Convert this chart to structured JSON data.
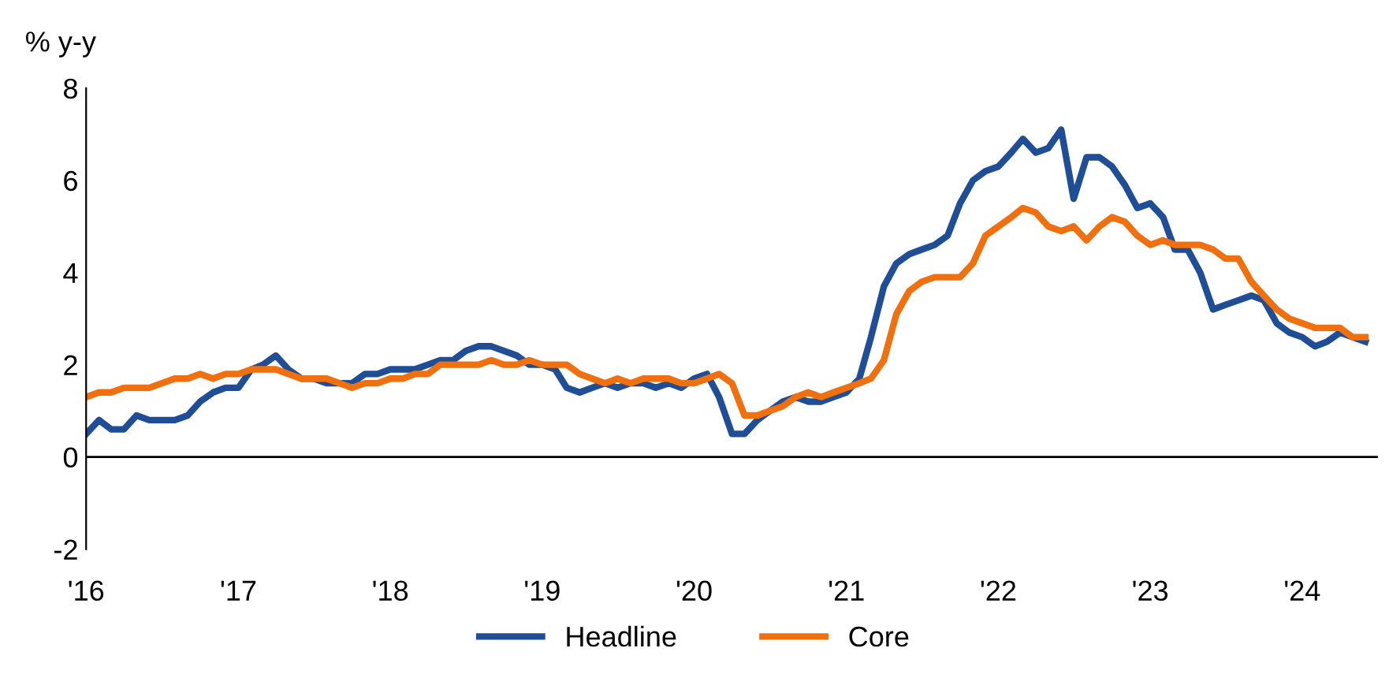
{
  "chart_data": {
    "type": "line",
    "ylabel": "% y-y",
    "x": [
      "2016-01",
      "2016-02",
      "2016-03",
      "2016-04",
      "2016-05",
      "2016-06",
      "2016-07",
      "2016-08",
      "2016-09",
      "2016-10",
      "2016-11",
      "2016-12",
      "2017-01",
      "2017-02",
      "2017-03",
      "2017-04",
      "2017-05",
      "2017-06",
      "2017-07",
      "2017-08",
      "2017-09",
      "2017-10",
      "2017-11",
      "2017-12",
      "2018-01",
      "2018-02",
      "2018-03",
      "2018-04",
      "2018-05",
      "2018-06",
      "2018-07",
      "2018-08",
      "2018-09",
      "2018-10",
      "2018-11",
      "2018-12",
      "2019-01",
      "2019-02",
      "2019-03",
      "2019-04",
      "2019-05",
      "2019-06",
      "2019-07",
      "2019-08",
      "2019-09",
      "2019-10",
      "2019-11",
      "2019-12",
      "2020-01",
      "2020-02",
      "2020-03",
      "2020-04",
      "2020-05",
      "2020-06",
      "2020-07",
      "2020-08",
      "2020-09",
      "2020-10",
      "2020-11",
      "2020-12",
      "2021-01",
      "2021-02",
      "2021-03",
      "2021-04",
      "2021-05",
      "2021-06",
      "2021-07",
      "2021-08",
      "2021-09",
      "2021-10",
      "2021-11",
      "2021-12",
      "2022-01",
      "2022-02",
      "2022-03",
      "2022-04",
      "2022-05",
      "2022-06",
      "2022-07",
      "2022-08",
      "2022-09",
      "2022-10",
      "2022-11",
      "2022-12",
      "2023-01",
      "2023-02",
      "2023-03",
      "2023-04",
      "2023-05",
      "2023-06",
      "2023-07",
      "2023-08",
      "2023-09",
      "2023-10",
      "2023-11",
      "2023-12",
      "2024-01",
      "2024-02",
      "2024-03",
      "2024-04",
      "2024-05",
      "2024-06"
    ],
    "series": [
      {
        "name": "Headline",
        "color": "#1f4e96",
        "values": [
          0.5,
          0.8,
          0.6,
          0.6,
          0.9,
          0.8,
          0.8,
          0.8,
          0.9,
          1.2,
          1.4,
          1.5,
          1.5,
          1.9,
          2.0,
          2.2,
          1.9,
          1.7,
          1.7,
          1.6,
          1.6,
          1.6,
          1.8,
          1.8,
          1.9,
          1.9,
          1.9,
          2.0,
          2.1,
          2.1,
          2.3,
          2.4,
          2.4,
          2.3,
          2.2,
          2.0,
          2.0,
          1.9,
          1.5,
          1.4,
          1.5,
          1.6,
          1.5,
          1.6,
          1.6,
          1.5,
          1.6,
          1.5,
          1.7,
          1.8,
          1.3,
          0.5,
          0.5,
          0.8,
          1.0,
          1.2,
          1.3,
          1.2,
          1.2,
          1.3,
          1.4,
          1.7,
          2.6,
          3.7,
          4.2,
          4.4,
          4.5,
          4.6,
          4.8,
          5.5,
          6.0,
          6.2,
          6.3,
          6.6,
          6.9,
          6.6,
          6.7,
          7.1,
          5.6,
          6.5,
          6.5,
          6.3,
          5.9,
          5.4,
          5.5,
          5.2,
          4.5,
          4.5,
          4.0,
          3.2,
          3.3,
          3.4,
          3.5,
          3.4,
          2.9,
          2.7,
          2.6,
          2.4,
          2.5,
          2.7,
          2.6,
          2.5
        ]
      },
      {
        "name": "Core",
        "color": "#f07010",
        "values": [
          1.3,
          1.4,
          1.4,
          1.5,
          1.5,
          1.5,
          1.6,
          1.7,
          1.7,
          1.8,
          1.7,
          1.8,
          1.8,
          1.9,
          1.9,
          1.9,
          1.8,
          1.7,
          1.7,
          1.7,
          1.6,
          1.5,
          1.6,
          1.6,
          1.7,
          1.7,
          1.8,
          1.8,
          2.0,
          2.0,
          2.0,
          2.0,
          2.1,
          2.0,
          2.0,
          2.1,
          2.0,
          2.0,
          2.0,
          1.8,
          1.7,
          1.6,
          1.7,
          1.6,
          1.7,
          1.7,
          1.7,
          1.6,
          1.6,
          1.7,
          1.8,
          1.6,
          0.9,
          0.9,
          1.0,
          1.1,
          1.3,
          1.4,
          1.3,
          1.4,
          1.5,
          1.6,
          1.7,
          2.1,
          3.1,
          3.6,
          3.8,
          3.9,
          3.9,
          3.9,
          4.2,
          4.8,
          5.0,
          5.2,
          5.4,
          5.3,
          5.0,
          4.9,
          5.0,
          4.7,
          5.0,
          5.2,
          5.1,
          4.8,
          4.6,
          4.7,
          4.6,
          4.6,
          4.6,
          4.5,
          4.3,
          4.3,
          3.8,
          3.5,
          3.2,
          3.0,
          2.9,
          2.8,
          2.8,
          2.8,
          2.6,
          2.6
        ]
      }
    ],
    "xlim": [
      "2016-01",
      "2024-07"
    ],
    "xticks": [
      {
        "value": "2016-01",
        "label": "'16"
      },
      {
        "value": "2017-01",
        "label": "'17"
      },
      {
        "value": "2018-01",
        "label": "'18"
      },
      {
        "value": "2019-01",
        "label": "'19"
      },
      {
        "value": "2020-01",
        "label": "'20"
      },
      {
        "value": "2021-01",
        "label": "'21"
      },
      {
        "value": "2022-01",
        "label": "'22"
      },
      {
        "value": "2023-01",
        "label": "'23"
      },
      {
        "value": "2024-01",
        "label": "'24"
      }
    ],
    "ylim": [
      -2,
      8
    ],
    "yticks": [
      -2,
      0,
      2,
      4,
      6,
      8
    ],
    "ref_lines": [
      {
        "axis": "y",
        "value": 0,
        "color": "#000000"
      }
    ],
    "grid": false,
    "legend": "bottom",
    "marker": "none",
    "line_style": "solid"
  }
}
